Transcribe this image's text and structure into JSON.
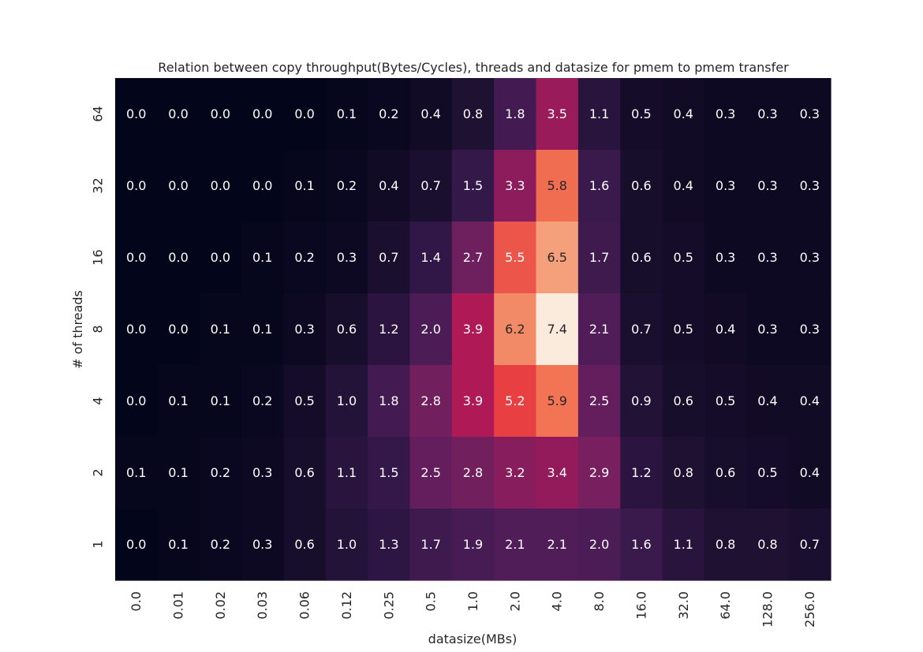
{
  "chart_data": {
    "type": "heatmap",
    "title": "Relation between copy throughput(Bytes/Cycles), threads and datasize for pmem to pmem transfer",
    "xlabel": "datasize(MBs)",
    "ylabel": "# of threads",
    "x_categories": [
      "0.0",
      "0.01",
      "0.02",
      "0.03",
      "0.06",
      "0.12",
      "0.25",
      "0.5",
      "1.0",
      "2.0",
      "4.0",
      "8.0",
      "16.0",
      "32.0",
      "64.0",
      "128.0",
      "256.0"
    ],
    "y_categories": [
      "64",
      "32",
      "16",
      "8",
      "4",
      "2",
      "1"
    ],
    "values": [
      [
        0.0,
        0.0,
        0.0,
        0.0,
        0.0,
        0.1,
        0.2,
        0.4,
        0.8,
        1.8,
        3.5,
        1.1,
        0.5,
        0.4,
        0.3,
        0.3,
        0.3
      ],
      [
        0.0,
        0.0,
        0.0,
        0.0,
        0.1,
        0.2,
        0.4,
        0.7,
        1.5,
        3.3,
        5.8,
        1.6,
        0.6,
        0.4,
        0.3,
        0.3,
        0.3
      ],
      [
        0.0,
        0.0,
        0.0,
        0.1,
        0.2,
        0.3,
        0.7,
        1.4,
        2.7,
        5.5,
        6.5,
        1.7,
        0.6,
        0.5,
        0.3,
        0.3,
        0.3
      ],
      [
        0.0,
        0.0,
        0.1,
        0.1,
        0.3,
        0.6,
        1.2,
        2.0,
        3.9,
        6.2,
        7.4,
        2.1,
        0.7,
        0.5,
        0.4,
        0.3,
        0.3
      ],
      [
        0.0,
        0.1,
        0.1,
        0.2,
        0.5,
        1.0,
        1.8,
        2.8,
        3.9,
        5.2,
        5.9,
        2.5,
        0.9,
        0.6,
        0.5,
        0.4,
        0.4
      ],
      [
        0.1,
        0.1,
        0.2,
        0.3,
        0.6,
        1.1,
        1.5,
        2.5,
        2.8,
        3.2,
        3.4,
        2.9,
        1.2,
        0.8,
        0.6,
        0.5,
        0.4
      ],
      [
        0.0,
        0.1,
        0.2,
        0.3,
        0.6,
        1.0,
        1.3,
        1.7,
        1.9,
        2.1,
        2.1,
        2.0,
        1.6,
        1.1,
        0.8,
        0.8,
        0.7
      ]
    ],
    "colormap": "rocket",
    "colorbar": false,
    "value_range": [
      0.0,
      7.4
    ]
  }
}
